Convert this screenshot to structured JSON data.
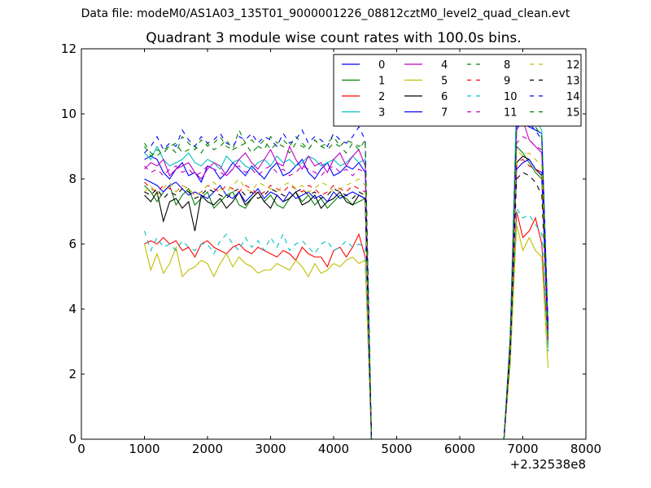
{
  "figure": {
    "suptitle": "Data file: modeM0/AS1A03_135T01_9000001226_08812cztM0_level2_quad_clean.evt"
  },
  "chart_data": {
    "type": "line",
    "title": "Quadrant 3 module wise count rates with 100.0s bins.",
    "xlabel": "",
    "ylabel": "",
    "x_offset_label": "+2.32538e8",
    "xlim": [
      0,
      8000
    ],
    "ylim": [
      0,
      12
    ],
    "xticks": [
      "0",
      "1000",
      "2000",
      "3000",
      "4000",
      "5000",
      "6000",
      "7000",
      "8000"
    ],
    "yticks": [
      "0",
      "2",
      "4",
      "6",
      "8",
      "10",
      "12"
    ],
    "grid": false,
    "legend_position": "top-right",
    "x": [
      1000,
      1100,
      1200,
      1300,
      1400,
      1500,
      1600,
      1700,
      1800,
      1900,
      2000,
      2100,
      2200,
      2300,
      2400,
      2500,
      2600,
      2700,
      2800,
      2900,
      3000,
      3100,
      3200,
      3300,
      3400,
      3500,
      3600,
      3700,
      3800,
      3900,
      4000,
      4100,
      4200,
      4300,
      4400,
      4500,
      4600,
      4700,
      6700,
      6800,
      6900,
      7000,
      7100,
      7200,
      7300,
      7400
    ],
    "series": [
      {
        "name": "0",
        "color": "#0000ff",
        "dash": "solid",
        "values": [
          8.6,
          8.7,
          8.6,
          8.2,
          8.0,
          8.3,
          8.5,
          8.1,
          8.2,
          7.9,
          8.4,
          8.3,
          8.0,
          8.2,
          8.5,
          8.3,
          8.1,
          8.4,
          8.2,
          8.0,
          8.3,
          8.5,
          8.1,
          8.2,
          8.4,
          8.6,
          8.2,
          8.0,
          8.3,
          8.5,
          8.1,
          8.2,
          8.4,
          8.3,
          8.5,
          8.2,
          0,
          0,
          0,
          3.0,
          9.6,
          9.7,
          9.6,
          9.5,
          9.4,
          3.4
        ]
      },
      {
        "name": "1",
        "color": "#008000",
        "dash": "solid",
        "values": [
          7.8,
          7.6,
          7.3,
          7.6,
          7.8,
          7.2,
          7.5,
          7.7,
          7.2,
          7.4,
          7.6,
          7.1,
          7.3,
          7.5,
          7.6,
          7.2,
          7.1,
          7.4,
          7.6,
          7.3,
          7.5,
          7.2,
          7.1,
          7.4,
          7.6,
          7.3,
          7.5,
          7.2,
          7.4,
          7.1,
          7.3,
          7.5,
          7.4,
          7.2,
          7.3,
          7.4,
          0,
          0,
          0,
          2.8,
          9.0,
          8.8,
          8.5,
          8.2,
          8.0,
          3.2
        ]
      },
      {
        "name": "2",
        "color": "#ff0000",
        "dash": "solid",
        "values": [
          6.0,
          6.1,
          6.0,
          6.2,
          6.0,
          6.1,
          5.8,
          5.9,
          5.6,
          6.0,
          6.1,
          5.9,
          5.8,
          5.7,
          5.9,
          6.0,
          5.8,
          5.7,
          5.9,
          5.8,
          5.7,
          5.6,
          5.8,
          5.7,
          5.5,
          5.9,
          5.7,
          5.6,
          5.6,
          5.3,
          5.8,
          5.9,
          5.6,
          5.9,
          6.3,
          5.6,
          0,
          0,
          0,
          2.5,
          7.0,
          6.2,
          6.4,
          6.8,
          6.0,
          2.9
        ]
      },
      {
        "name": "3",
        "color": "#00bfbf",
        "dash": "solid",
        "values": [
          8.8,
          8.6,
          9.0,
          8.6,
          8.4,
          8.5,
          8.6,
          8.8,
          8.5,
          8.4,
          8.6,
          8.5,
          8.3,
          8.7,
          8.5,
          8.6,
          8.4,
          8.3,
          8.5,
          8.6,
          8.4,
          8.7,
          8.5,
          8.6,
          8.4,
          8.5,
          8.7,
          8.6,
          8.4,
          8.5,
          8.6,
          8.4,
          8.5,
          8.7,
          8.5,
          8.6,
          0,
          0,
          0,
          3.2,
          10.4,
          9.8,
          9.9,
          9.8,
          9.5,
          2.8
        ]
      },
      {
        "name": "4",
        "color": "#bf00bf",
        "dash": "solid",
        "values": [
          8.3,
          8.5,
          8.4,
          8.6,
          8.1,
          8.3,
          8.4,
          8.5,
          8.2,
          8.0,
          8.3,
          8.5,
          8.4,
          8.1,
          8.3,
          8.6,
          8.8,
          8.5,
          8.3,
          8.6,
          8.9,
          8.5,
          8.4,
          9.0,
          8.6,
          8.3,
          8.7,
          8.4,
          8.5,
          8.2,
          8.6,
          8.8,
          8.4,
          8.7,
          8.9,
          8.4,
          0,
          0,
          0,
          3.0,
          9.5,
          9.8,
          9.2,
          9.0,
          8.8,
          3.2
        ]
      },
      {
        "name": "5",
        "color": "#bfbf00",
        "dash": "solid",
        "values": [
          6.0,
          5.2,
          5.7,
          5.1,
          5.4,
          5.9,
          5.0,
          5.2,
          5.3,
          5.5,
          5.4,
          5.0,
          5.4,
          5.7,
          5.3,
          5.6,
          5.4,
          5.3,
          5.1,
          5.2,
          5.2,
          5.4,
          5.3,
          5.2,
          5.5,
          5.3,
          5.0,
          5.4,
          5.1,
          5.2,
          5.4,
          5.3,
          5.5,
          5.6,
          5.4,
          5.5,
          0,
          0,
          0,
          2.3,
          6.6,
          5.8,
          6.2,
          5.8,
          5.6,
          2.2
        ]
      },
      {
        "name": "6",
        "color": "#000000",
        "dash": "solid",
        "values": [
          7.5,
          7.3,
          7.6,
          6.7,
          7.3,
          7.4,
          7.1,
          7.3,
          6.4,
          7.5,
          7.3,
          7.2,
          7.4,
          7.1,
          7.3,
          7.6,
          7.2,
          7.4,
          7.6,
          7.3,
          7.1,
          7.5,
          7.3,
          7.4,
          7.6,
          7.2,
          7.3,
          7.5,
          7.1,
          7.3,
          7.4,
          7.6,
          7.3,
          7.2,
          7.5,
          7.4,
          0,
          0,
          0,
          2.7,
          8.5,
          8.7,
          8.6,
          8.3,
          8.1,
          3.5
        ]
      },
      {
        "name": "7",
        "color": "#0000ff",
        "dash": "solid",
        "values": [
          8.0,
          7.9,
          7.8,
          7.6,
          7.8,
          7.9,
          7.7,
          7.5,
          7.6,
          7.5,
          7.4,
          7.6,
          7.8,
          7.5,
          7.4,
          7.6,
          7.3,
          7.5,
          7.7,
          7.4,
          7.6,
          7.5,
          7.3,
          7.6,
          7.4,
          7.5,
          7.6,
          7.4,
          7.5,
          7.3,
          7.6,
          7.4,
          7.5,
          7.6,
          7.5,
          7.4,
          0,
          0,
          0,
          2.9,
          8.3,
          8.5,
          8.6,
          8.3,
          8.2,
          3.0
        ]
      },
      {
        "name": "8",
        "color": "#008000",
        "dash": "dashed",
        "values": [
          9.1,
          8.8,
          8.7,
          8.9,
          9.0,
          8.8,
          9.3,
          9.1,
          8.9,
          9.2,
          9.0,
          9.1,
          9.3,
          9.0,
          8.9,
          9.5,
          9.1,
          9.2,
          9.0,
          8.9,
          9.3,
          9.1,
          9.2,
          9.0,
          9.3,
          9.1,
          8.9,
          9.2,
          9.0,
          9.1,
          9.3,
          9.0,
          9.2,
          9.1,
          8.9,
          9.2,
          0,
          0,
          0,
          3.1,
          9.8,
          9.9,
          9.7,
          9.6,
          9.3,
          3.4
        ]
      },
      {
        "name": "9",
        "color": "#ff0000",
        "dash": "dashed",
        "values": [
          7.9,
          7.7,
          7.6,
          7.8,
          7.7,
          7.6,
          7.8,
          7.7,
          7.5,
          7.6,
          7.8,
          7.7,
          7.6,
          7.8,
          7.7,
          7.6,
          7.8,
          7.7,
          7.5,
          7.6,
          7.8,
          7.7,
          7.6,
          7.8,
          7.7,
          7.6,
          7.8,
          7.7,
          7.5,
          7.6,
          7.8,
          7.7,
          7.6,
          7.8,
          7.7,
          7.6,
          0,
          0,
          0,
          2.8,
          8.5,
          8.6,
          8.4,
          8.3,
          8.2,
          3.1
        ]
      },
      {
        "name": "10",
        "color": "#00bfbf",
        "dash": "dashed",
        "values": [
          6.4,
          5.8,
          6.2,
          5.9,
          6.0,
          5.8,
          6.1,
          5.9,
          5.8,
          6.0,
          6.0,
          5.7,
          6.1,
          6.3,
          6.0,
          5.8,
          6.2,
          5.9,
          6.1,
          5.8,
          6.2,
          5.9,
          6.3,
          5.8,
          6.0,
          6.1,
          5.9,
          5.7,
          6.0,
          6.1,
          5.8,
          5.9,
          6.1,
          5.9,
          6.0,
          5.9,
          0,
          0,
          0,
          2.6,
          7.1,
          6.8,
          6.9,
          6.6,
          6.3,
          2.7
        ]
      },
      {
        "name": "11",
        "color": "#bf00bf",
        "dash": "dashed",
        "values": [
          8.4,
          8.2,
          8.3,
          8.1,
          8.3,
          8.4,
          8.2,
          8.3,
          8.1,
          8.2,
          8.4,
          8.3,
          8.2,
          8.1,
          8.3,
          8.4,
          8.2,
          8.3,
          8.1,
          8.3,
          8.4,
          8.2,
          8.3,
          8.1,
          8.2,
          8.4,
          8.3,
          8.2,
          8.1,
          8.3,
          8.4,
          8.2,
          8.3,
          8.1,
          8.3,
          8.2,
          0,
          0,
          0,
          2.9,
          9.1,
          9.3,
          9.2,
          9.0,
          8.9,
          3.3
        ]
      },
      {
        "name": "12",
        "color": "#bfbf00",
        "dash": "dashed",
        "values": [
          7.6,
          7.8,
          7.5,
          7.7,
          7.9,
          7.6,
          7.8,
          7.7,
          7.5,
          7.6,
          7.8,
          7.9,
          7.7,
          7.6,
          7.8,
          8.0,
          7.7,
          7.6,
          7.9,
          7.8,
          7.7,
          7.6,
          7.8,
          7.9,
          7.7,
          7.8,
          7.6,
          7.7,
          7.9,
          7.8,
          7.6,
          7.7,
          7.8,
          7.9,
          8.0,
          7.8,
          0,
          0,
          0,
          2.8,
          8.9,
          8.7,
          8.8,
          8.6,
          8.4,
          3.0
        ]
      },
      {
        "name": "13",
        "color": "#000000",
        "dash": "dashed",
        "values": [
          7.6,
          7.5,
          7.7,
          7.4,
          7.6,
          7.5,
          7.7,
          7.6,
          7.4,
          7.5,
          7.7,
          7.6,
          7.5,
          7.4,
          7.6,
          7.7,
          7.5,
          7.6,
          7.4,
          7.5,
          7.7,
          7.6,
          7.5,
          7.4,
          7.6,
          7.7,
          7.5,
          7.6,
          7.4,
          7.5,
          7.7,
          7.6,
          7.5,
          7.4,
          7.6,
          7.5,
          0,
          0,
          0,
          2.7,
          8.0,
          8.2,
          8.1,
          7.9,
          7.5,
          3.4
        ]
      },
      {
        "name": "14",
        "color": "#0000ff",
        "dash": "dashed",
        "values": [
          8.8,
          9.0,
          9.3,
          8.9,
          9.1,
          9.0,
          9.5,
          9.2,
          9.0,
          9.3,
          9.1,
          9.2,
          9.4,
          9.1,
          9.0,
          9.3,
          9.2,
          9.4,
          9.1,
          9.3,
          9.2,
          9.0,
          9.4,
          9.1,
          9.2,
          9.5,
          9.1,
          9.3,
          9.2,
          9.0,
          9.4,
          9.2,
          9.1,
          9.3,
          9.6,
          9.2,
          0,
          0,
          0,
          3.0,
          9.6,
          9.8,
          9.7,
          9.5,
          9.2,
          3.5
        ]
      },
      {
        "name": "15",
        "color": "#008000",
        "dash": "dashed",
        "values": [
          9.0,
          8.7,
          8.9,
          8.8,
          9.0,
          9.1,
          8.8,
          8.9,
          9.0,
          8.8,
          9.1,
          8.9,
          9.0,
          9.2,
          8.9,
          9.0,
          9.1,
          8.8,
          9.0,
          9.2,
          8.9,
          9.1,
          9.0,
          8.8,
          9.1,
          9.0,
          8.9,
          9.2,
          9.0,
          8.9,
          9.1,
          9.0,
          8.8,
          9.1,
          9.0,
          9.1,
          0,
          0,
          0,
          3.1,
          9.7,
          9.9,
          9.8,
          9.6,
          9.3,
          3.2
        ]
      }
    ]
  }
}
